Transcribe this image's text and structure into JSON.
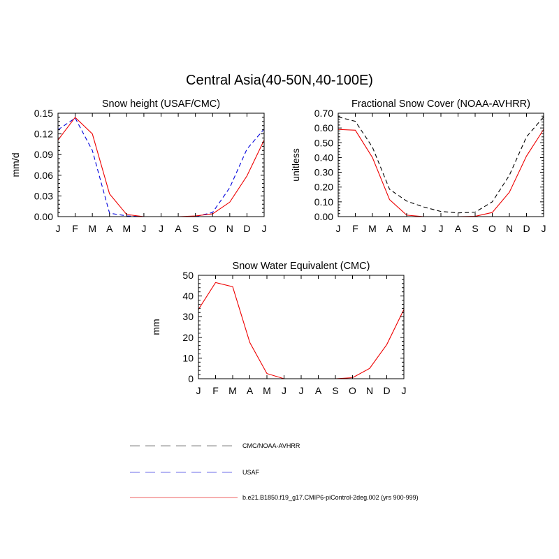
{
  "figure": {
    "title": "Central Asia(40-50N,40-100E)"
  },
  "colors": {
    "obs": "#000000",
    "usaf": "#0000dd",
    "model": "#ee0000",
    "legend_obs": "#9a9a9a",
    "legend_usaf": "#8a8aee",
    "legend_model": "#f08080"
  },
  "chart_data": [
    {
      "type": "line",
      "title": "Snow height (USAF/CMC)",
      "xlabel": "",
      "ylabel": "mm/d",
      "categories": [
        "J",
        "F",
        "M",
        "A",
        "M",
        "J",
        "J",
        "A",
        "S",
        "O",
        "N",
        "D",
        "J"
      ],
      "ylim": [
        0,
        0.15
      ],
      "yticks": [
        0,
        0.03,
        0.06,
        0.09,
        0.12,
        0.15
      ],
      "ytick_labels": [
        "0.00",
        "0.03",
        "0.06",
        "0.09",
        "0.12",
        "0.15"
      ],
      "series": [
        {
          "name": "CMC/NOAA-AVHRR",
          "style": "dashed",
          "color_key": "obs",
          "values": [
            0,
            0,
            0,
            0,
            0,
            0,
            0,
            0,
            0,
            0,
            0,
            0,
            0
          ]
        },
        {
          "name": "USAF",
          "style": "dashed",
          "color_key": "usaf",
          "values": [
            0.126,
            0.143,
            0.096,
            0.005,
            0.001,
            0,
            0,
            0,
            0,
            0.006,
            0.042,
            0.098,
            0.127
          ]
        },
        {
          "name": "b.e21.B1850.f19_g17.CMIP6-piControl-2deg.002 (yrs 900-999)",
          "style": "solid",
          "color_key": "model",
          "values": [
            0.111,
            0.144,
            0.12,
            0.033,
            0.003,
            0,
            0,
            0,
            0.001,
            0.004,
            0.021,
            0.059,
            0.111
          ]
        }
      ]
    },
    {
      "type": "line",
      "title": "Fractional Snow Cover (NOAA-AVHRR)",
      "xlabel": "",
      "ylabel": "unitless",
      "categories": [
        "J",
        "F",
        "M",
        "A",
        "M",
        "J",
        "J",
        "A",
        "S",
        "O",
        "N",
        "D",
        "J"
      ],
      "ylim": [
        0,
        0.7
      ],
      "yticks": [
        0,
        0.1,
        0.2,
        0.3,
        0.4,
        0.5,
        0.6,
        0.7
      ],
      "ytick_labels": [
        "0.00",
        "0.10",
        "0.20",
        "0.30",
        "0.40",
        "0.50",
        "0.60",
        "0.70"
      ],
      "series": [
        {
          "name": "CMC/NOAA-AVHRR",
          "style": "dashed",
          "color_key": "obs",
          "values": [
            0.675,
            0.645,
            0.47,
            0.185,
            0.105,
            0.065,
            0.035,
            0.025,
            0.03,
            0.1,
            0.28,
            0.54,
            0.675
          ]
        },
        {
          "name": "b.e21.B1850.f19_g17.CMIP6-piControl-2deg.002 (yrs 900-999)",
          "style": "solid",
          "color_key": "model",
          "values": [
            0.59,
            0.585,
            0.4,
            0.115,
            0.01,
            0,
            0,
            0,
            0.002,
            0.028,
            0.165,
            0.41,
            0.59
          ]
        }
      ]
    },
    {
      "type": "line",
      "title": "Snow Water Equivalent (CMC)",
      "xlabel": "",
      "ylabel": "mm",
      "categories": [
        "J",
        "F",
        "M",
        "A",
        "M",
        "J",
        "J",
        "A",
        "S",
        "O",
        "N",
        "D",
        "J"
      ],
      "ylim": [
        0,
        50
      ],
      "yticks": [
        0,
        10,
        20,
        30,
        40,
        50
      ],
      "ytick_labels": [
        "0",
        "10",
        "20",
        "30",
        "40",
        "50"
      ],
      "series": [
        {
          "name": "CMC/NOAA-AVHRR",
          "style": "dashed",
          "color_key": "obs",
          "values": [
            0,
            0,
            0,
            0,
            0,
            0,
            0,
            0,
            0,
            0,
            0,
            0,
            0
          ]
        },
        {
          "name": "b.e21.B1850.f19_g17.CMIP6-piControl-2deg.002 (yrs 900-999)",
          "style": "solid",
          "color_key": "model",
          "values": [
            33.5,
            46.5,
            44.5,
            17.5,
            2.5,
            0,
            0,
            0,
            0,
            0.5,
            5,
            16.5,
            33.5
          ]
        }
      ]
    }
  ],
  "legend": {
    "items": [
      {
        "label": "CMC/NOAA-AVHRR",
        "style": "dashed",
        "color_key": "legend_obs"
      },
      {
        "label": "USAF",
        "style": "dashed",
        "color_key": "legend_usaf"
      },
      {
        "label": "b.e21.B1850.f19_g17.CMIP6-piControl-2deg.002 (yrs 900-999)",
        "style": "solid",
        "color_key": "legend_model"
      }
    ]
  }
}
